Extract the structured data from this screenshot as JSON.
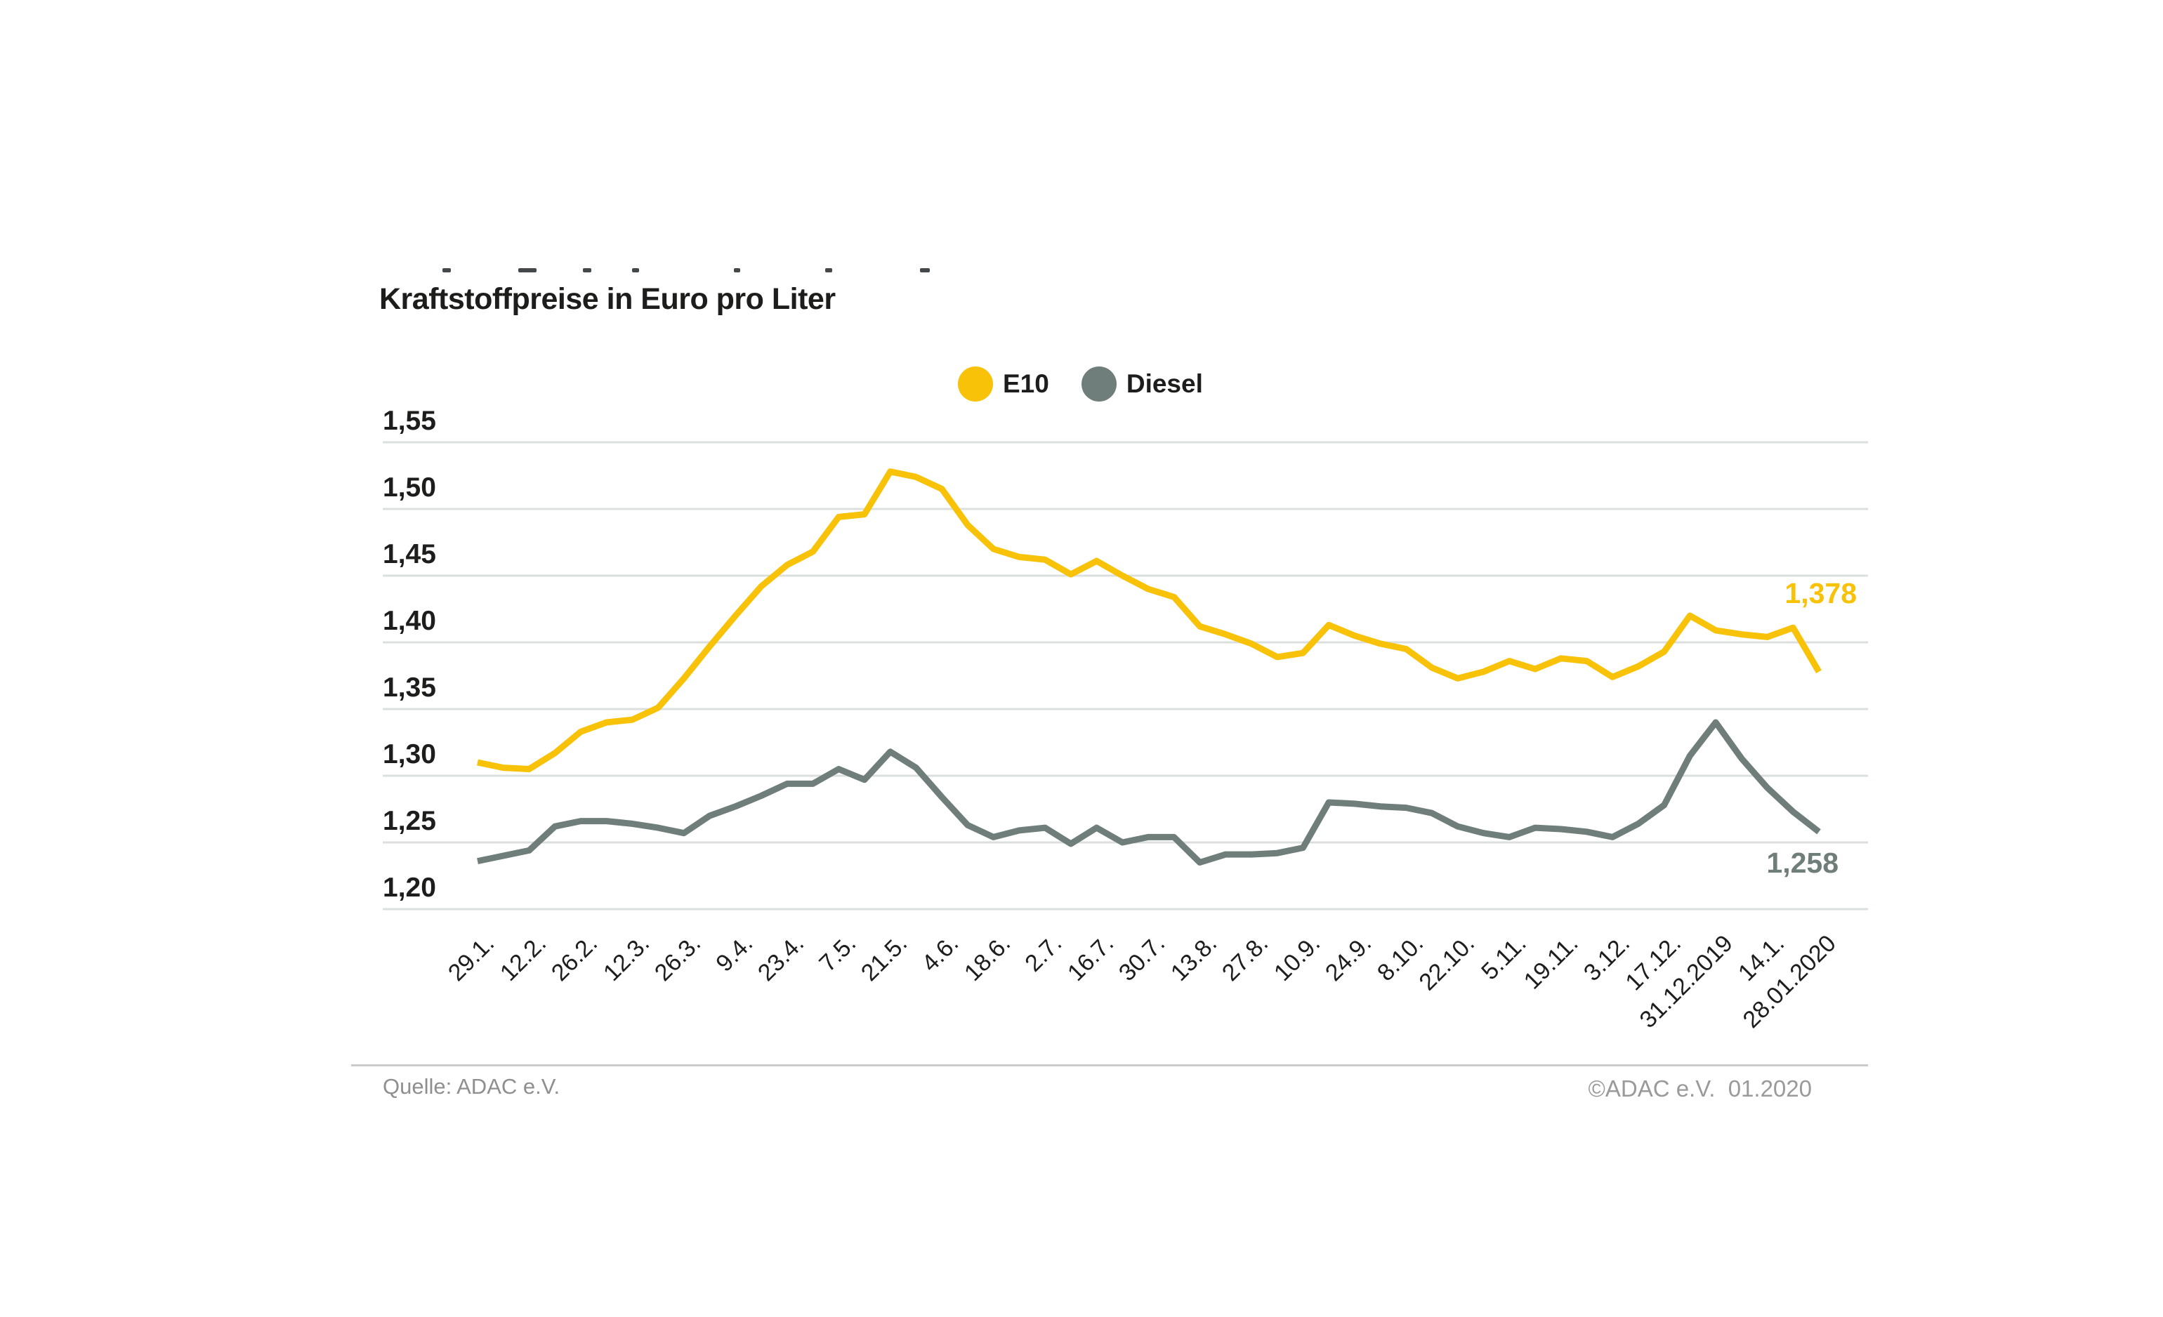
{
  "header": {
    "title": "Kraftstoffpreise in Euro pro Liter"
  },
  "legend": [
    {
      "label": "E10",
      "color": "#F7C208"
    },
    {
      "label": "Diesel",
      "color": "#6F7E7A"
    }
  ],
  "footer": {
    "source": "Quelle: ADAC e.V.",
    "copyright": "©ADAC e.V.  01.2020"
  },
  "chart_data": {
    "type": "line",
    "title": "Kraftstoffpreise in Euro pro Liter",
    "ylabel": "Euro pro Liter",
    "xlabel": "",
    "grid": true,
    "legend_position": "top-center",
    "ylim": [
      1.2,
      1.55
    ],
    "y_ticks": [
      1.55,
      1.5,
      1.45,
      1.4,
      1.35,
      1.3,
      1.25,
      1.2
    ],
    "y_tick_labels": [
      "1,55",
      "1,50",
      "1,45",
      "1,40",
      "1,35",
      "1,30",
      "1,25",
      "1,20"
    ],
    "x_tick_labels": [
      "29.1.",
      "12.2.",
      "26.2.",
      "12.3.",
      "26.3.",
      "9.4.",
      "23.4.",
      "7.5.",
      "21.5.",
      "4.6.",
      "18.6.",
      "2.7.",
      "16.7.",
      "30.7.",
      "13.8.",
      "27.8.",
      "10.9.",
      "24.9.",
      "8.10.",
      "22.10.",
      "5.11.",
      "19.11.",
      "3.12.",
      "17.12.",
      "31.12.2019",
      "14.1.",
      "28.01.2020"
    ],
    "x_ticks_every_nth_point": 2,
    "series": [
      {
        "name": "E10",
        "color": "#F7C208",
        "values": [
          1.31,
          1.306,
          1.305,
          1.317,
          1.333,
          1.34,
          1.342,
          1.351,
          1.373,
          1.397,
          1.42,
          1.442,
          1.458,
          1.468,
          1.494,
          1.496,
          1.528,
          1.524,
          1.515,
          1.488,
          1.47,
          1.464,
          1.462,
          1.451,
          1.461,
          1.45,
          1.44,
          1.434,
          1.412,
          1.406,
          1.399,
          1.389,
          1.392,
          1.413,
          1.405,
          1.399,
          1.395,
          1.381,
          1.373,
          1.378,
          1.386,
          1.38,
          1.388,
          1.386,
          1.374,
          1.382,
          1.393,
          1.42,
          1.409,
          1.406,
          1.404,
          1.411,
          1.378
        ]
      },
      {
        "name": "Diesel",
        "color": "#6F7E7A",
        "values": [
          1.236,
          1.24,
          1.244,
          1.262,
          1.266,
          1.266,
          1.264,
          1.261,
          1.257,
          1.27,
          1.277,
          1.285,
          1.294,
          1.294,
          1.305,
          1.297,
          1.318,
          1.306,
          1.284,
          1.263,
          1.254,
          1.259,
          1.261,
          1.249,
          1.261,
          1.25,
          1.254,
          1.254,
          1.235,
          1.241,
          1.241,
          1.242,
          1.246,
          1.28,
          1.279,
          1.277,
          1.276,
          1.272,
          1.262,
          1.257,
          1.254,
          1.261,
          1.26,
          1.258,
          1.254,
          1.264,
          1.278,
          1.315,
          1.34,
          1.313,
          1.291,
          1.273,
          1.258
        ]
      }
    ],
    "end_labels": [
      {
        "series": "E10",
        "text": "1,378",
        "color": "#F7C208"
      },
      {
        "series": "Diesel",
        "text": "1,258",
        "color": "#6F7E7A"
      }
    ],
    "gridline_color": "#dbe0de"
  }
}
